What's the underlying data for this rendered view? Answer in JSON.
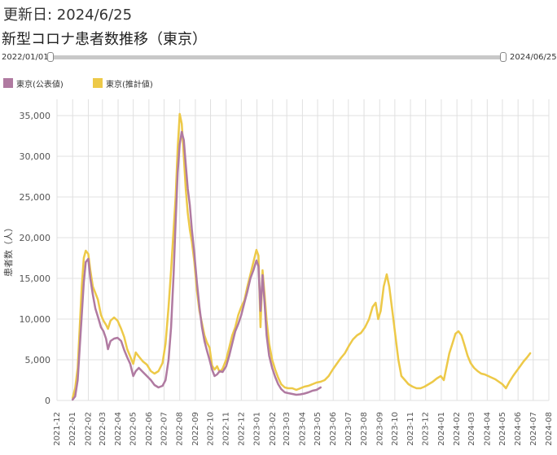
{
  "header": {
    "updated": "更新日: 2024/6/25",
    "title": "新型コロナ患者数推移（東京）"
  },
  "range_slider": {
    "start_label": "2022/01/01",
    "end_label": "2024/06/25"
  },
  "colors": {
    "official": "#b07aa1",
    "estimated": "#edc948",
    "grid": "#e0e0e0"
  },
  "chart_data": {
    "type": "line",
    "title": "",
    "xlabel": "",
    "ylabel": "患者数（人）",
    "ylim": [
      0,
      37000
    ],
    "y_ticks": [
      0,
      5000,
      10000,
      15000,
      20000,
      25000,
      30000,
      35000
    ],
    "y_tick_labels": [
      "0",
      "5,000",
      "10,000",
      "15,000",
      "20,000",
      "25,000",
      "30,000",
      "35,000"
    ],
    "x_range": [
      "2021-12",
      "2024-08"
    ],
    "x_tick_labels": [
      "2021-12",
      "2022-01",
      "2022-02",
      "2022-03",
      "2022-04",
      "2022-05",
      "2022-06",
      "2022-07",
      "2022-08",
      "2022-09",
      "2022-10",
      "2022-11",
      "2022-12",
      "2023-01",
      "2023-02",
      "2023-03",
      "2023-04",
      "2023-05",
      "2023-06",
      "2023-07",
      "2023-08",
      "2023-09",
      "2023-10",
      "2023-11",
      "2023-12",
      "2024-01",
      "2024-02",
      "2024-03",
      "2024-04",
      "2024-05",
      "2024-06",
      "2024-07",
      "2024-08"
    ],
    "legend_position": "top-left",
    "grid": true,
    "series": [
      {
        "name": "東京(公表値)",
        "color": "#b07aa1",
        "points": [
          [
            "2022-01-01",
            100
          ],
          [
            "2022-01-06",
            500
          ],
          [
            "2022-01-11",
            2500
          ],
          [
            "2022-01-15",
            6500
          ],
          [
            "2022-01-19",
            10500
          ],
          [
            "2022-01-23",
            14500
          ],
          [
            "2022-01-27",
            17000
          ],
          [
            "2022-02-01",
            17400
          ],
          [
            "2022-02-05",
            15000
          ],
          [
            "2022-02-10",
            13000
          ],
          [
            "2022-02-15",
            11300
          ],
          [
            "2022-02-20",
            10300
          ],
          [
            "2022-02-26",
            9000
          ],
          [
            "2022-03-03",
            8500
          ],
          [
            "2022-03-08",
            7600
          ],
          [
            "2022-03-12",
            6300
          ],
          [
            "2022-03-17",
            7300
          ],
          [
            "2022-03-24",
            7600
          ],
          [
            "2022-03-31",
            7700
          ],
          [
            "2022-04-07",
            7300
          ],
          [
            "2022-04-13",
            6200
          ],
          [
            "2022-04-19",
            5300
          ],
          [
            "2022-04-25",
            4500
          ],
          [
            "2022-05-01",
            3000
          ],
          [
            "2022-05-06",
            3600
          ],
          [
            "2022-05-12",
            4000
          ],
          [
            "2022-05-20",
            3500
          ],
          [
            "2022-05-28",
            3000
          ],
          [
            "2022-06-05",
            2500
          ],
          [
            "2022-06-12",
            1900
          ],
          [
            "2022-06-20",
            1600
          ],
          [
            "2022-06-28",
            1800
          ],
          [
            "2022-07-04",
            2500
          ],
          [
            "2022-07-10",
            5000
          ],
          [
            "2022-07-15",
            9000
          ],
          [
            "2022-07-20",
            15500
          ],
          [
            "2022-07-24",
            22000
          ],
          [
            "2022-07-28",
            28000
          ],
          [
            "2022-08-01",
            31500
          ],
          [
            "2022-08-05",
            33000
          ],
          [
            "2022-08-09",
            32000
          ],
          [
            "2022-08-13",
            29000
          ],
          [
            "2022-08-17",
            26000
          ],
          [
            "2022-08-21",
            24000
          ],
          [
            "2022-08-25",
            21000
          ],
          [
            "2022-08-30",
            18000
          ],
          [
            "2022-09-04",
            14500
          ],
          [
            "2022-09-09",
            11500
          ],
          [
            "2022-09-14",
            9000
          ],
          [
            "2022-09-19",
            7300
          ],
          [
            "2022-09-24",
            6100
          ],
          [
            "2022-09-29",
            5000
          ],
          [
            "2022-10-04",
            3800
          ],
          [
            "2022-10-09",
            3000
          ],
          [
            "2022-10-14",
            3200
          ],
          [
            "2022-10-19",
            3600
          ],
          [
            "2022-10-25",
            3500
          ],
          [
            "2022-11-01",
            4200
          ],
          [
            "2022-11-07",
            5500
          ],
          [
            "2022-11-13",
            7000
          ],
          [
            "2022-11-19",
            8500
          ],
          [
            "2022-11-25",
            9400
          ],
          [
            "2022-12-01",
            10500
          ],
          [
            "2022-12-07",
            12000
          ],
          [
            "2022-12-13",
            13400
          ],
          [
            "2022-12-19",
            15000
          ],
          [
            "2022-12-25",
            16000
          ],
          [
            "2022-12-31",
            17200
          ],
          [
            "2023-01-04",
            16500
          ],
          [
            "2023-01-08",
            11000
          ],
          [
            "2023-01-12",
            15400
          ],
          [
            "2023-01-16",
            12000
          ],
          [
            "2023-01-20",
            8000
          ],
          [
            "2023-01-25",
            5500
          ],
          [
            "2023-01-31",
            4000
          ],
          [
            "2023-02-06",
            2900
          ],
          [
            "2023-02-12",
            2000
          ],
          [
            "2023-02-18",
            1400
          ],
          [
            "2023-02-25",
            1000
          ],
          [
            "2023-03-04",
            900
          ],
          [
            "2023-03-12",
            800
          ],
          [
            "2023-03-20",
            700
          ],
          [
            "2023-03-28",
            750
          ],
          [
            "2023-04-05",
            850
          ],
          [
            "2023-04-13",
            1000
          ],
          [
            "2023-04-21",
            1200
          ],
          [
            "2023-04-29",
            1300
          ],
          [
            "2023-05-07",
            1600
          ]
        ]
      },
      {
        "name": "東京(推計値)",
        "color": "#edc948",
        "points": [
          [
            "2022-01-01",
            300
          ],
          [
            "2022-01-06",
            1500
          ],
          [
            "2022-01-11",
            4000
          ],
          [
            "2022-01-15",
            9000
          ],
          [
            "2022-01-19",
            14000
          ],
          [
            "2022-01-23",
            17500
          ],
          [
            "2022-01-27",
            18400
          ],
          [
            "2022-02-01",
            18000
          ],
          [
            "2022-02-05",
            16000
          ],
          [
            "2022-02-10",
            14000
          ],
          [
            "2022-02-15",
            13200
          ],
          [
            "2022-02-20",
            12400
          ],
          [
            "2022-02-26",
            10500
          ],
          [
            "2022-03-03",
            9800
          ],
          [
            "2022-03-08",
            9300
          ],
          [
            "2022-03-12",
            8800
          ],
          [
            "2022-03-17",
            9800
          ],
          [
            "2022-03-24",
            10200
          ],
          [
            "2022-03-31",
            9800
          ],
          [
            "2022-04-07",
            8800
          ],
          [
            "2022-04-13",
            7800
          ],
          [
            "2022-04-19",
            6300
          ],
          [
            "2022-04-25",
            5400
          ],
          [
            "2022-05-01",
            4500
          ],
          [
            "2022-05-06",
            5900
          ],
          [
            "2022-05-12",
            5400
          ],
          [
            "2022-05-20",
            4800
          ],
          [
            "2022-05-28",
            4400
          ],
          [
            "2022-06-05",
            3600
          ],
          [
            "2022-06-12",
            3300
          ],
          [
            "2022-06-20",
            3600
          ],
          [
            "2022-06-28",
            4600
          ],
          [
            "2022-07-04",
            7000
          ],
          [
            "2022-07-10",
            11500
          ],
          [
            "2022-07-15",
            16000
          ],
          [
            "2022-07-20",
            21000
          ],
          [
            "2022-07-24",
            25000
          ],
          [
            "2022-07-28",
            31000
          ],
          [
            "2022-08-01",
            35200
          ],
          [
            "2022-08-05",
            34000
          ],
          [
            "2022-08-09",
            30000
          ],
          [
            "2022-08-13",
            26000
          ],
          [
            "2022-08-17",
            23000
          ],
          [
            "2022-08-21",
            21000
          ],
          [
            "2022-08-25",
            19500
          ],
          [
            "2022-08-30",
            17000
          ],
          [
            "2022-09-04",
            13500
          ],
          [
            "2022-09-09",
            11000
          ],
          [
            "2022-09-14",
            9500
          ],
          [
            "2022-09-19",
            8000
          ],
          [
            "2022-09-24",
            7100
          ],
          [
            "2022-09-29",
            6500
          ],
          [
            "2022-10-04",
            4300
          ],
          [
            "2022-10-09",
            3800
          ],
          [
            "2022-10-14",
            4200
          ],
          [
            "2022-10-19",
            3500
          ],
          [
            "2022-10-25",
            3900
          ],
          [
            "2022-11-01",
            5000
          ],
          [
            "2022-11-07",
            6500
          ],
          [
            "2022-11-13",
            8000
          ],
          [
            "2022-11-19",
            9000
          ],
          [
            "2022-11-25",
            10500
          ],
          [
            "2022-12-01",
            11500
          ],
          [
            "2022-12-07",
            12300
          ],
          [
            "2022-12-13",
            14000
          ],
          [
            "2022-12-19",
            15500
          ],
          [
            "2022-12-25",
            17000
          ],
          [
            "2022-12-31",
            18500
          ],
          [
            "2023-01-04",
            17800
          ],
          [
            "2023-01-08",
            9000
          ],
          [
            "2023-01-12",
            16000
          ],
          [
            "2023-01-16",
            13000
          ],
          [
            "2023-01-20",
            9800
          ],
          [
            "2023-01-25",
            7000
          ],
          [
            "2023-01-31",
            5000
          ],
          [
            "2023-02-06",
            3800
          ],
          [
            "2023-02-12",
            2800
          ],
          [
            "2023-02-18",
            2000
          ],
          [
            "2023-02-25",
            1600
          ],
          [
            "2023-03-04",
            1500
          ],
          [
            "2023-03-12",
            1500
          ],
          [
            "2023-03-20",
            1300
          ],
          [
            "2023-03-28",
            1500
          ],
          [
            "2023-04-05",
            1700
          ],
          [
            "2023-04-13",
            1800
          ],
          [
            "2023-04-21",
            2000
          ],
          [
            "2023-04-29",
            2200
          ],
          [
            "2023-05-07",
            2300
          ],
          [
            "2023-05-15",
            2500
          ],
          [
            "2023-05-23",
            3000
          ],
          [
            "2023-05-31",
            3800
          ],
          [
            "2023-06-08",
            4500
          ],
          [
            "2023-06-16",
            5200
          ],
          [
            "2023-06-24",
            5800
          ],
          [
            "2023-07-02",
            6700
          ],
          [
            "2023-07-10",
            7500
          ],
          [
            "2023-07-18",
            8000
          ],
          [
            "2023-07-26",
            8300
          ],
          [
            "2023-08-03",
            9000
          ],
          [
            "2023-08-11",
            10000
          ],
          [
            "2023-08-18",
            11500
          ],
          [
            "2023-08-24",
            12000
          ],
          [
            "2023-08-29",
            10000
          ],
          [
            "2023-09-03",
            11000
          ],
          [
            "2023-09-09",
            14000
          ],
          [
            "2023-09-15",
            15500
          ],
          [
            "2023-09-20",
            14000
          ],
          [
            "2023-09-26",
            11000
          ],
          [
            "2023-10-02",
            8000
          ],
          [
            "2023-10-08",
            5000
          ],
          [
            "2023-10-14",
            3000
          ],
          [
            "2023-10-21",
            2500
          ],
          [
            "2023-10-28",
            2000
          ],
          [
            "2023-11-05",
            1700
          ],
          [
            "2023-11-13",
            1500
          ],
          [
            "2023-11-21",
            1500
          ],
          [
            "2023-11-29",
            1700
          ],
          [
            "2023-12-07",
            2000
          ],
          [
            "2023-12-15",
            2300
          ],
          [
            "2023-12-23",
            2700
          ],
          [
            "2023-12-31",
            3000
          ],
          [
            "2024-01-06",
            2500
          ],
          [
            "2024-01-11",
            4000
          ],
          [
            "2024-01-17",
            5800
          ],
          [
            "2024-01-23",
            7000
          ],
          [
            "2024-01-29",
            8200
          ],
          [
            "2024-02-04",
            8500
          ],
          [
            "2024-02-10",
            8000
          ],
          [
            "2024-02-16",
            6800
          ],
          [
            "2024-02-22",
            5500
          ],
          [
            "2024-02-28",
            4600
          ],
          [
            "2024-03-06",
            4000
          ],
          [
            "2024-03-13",
            3600
          ],
          [
            "2024-03-20",
            3300
          ],
          [
            "2024-03-27",
            3200
          ],
          [
            "2024-04-03",
            3000
          ],
          [
            "2024-04-10",
            2800
          ],
          [
            "2024-04-17",
            2600
          ],
          [
            "2024-04-24",
            2300
          ],
          [
            "2024-05-01",
            2000
          ],
          [
            "2024-05-08",
            1500
          ],
          [
            "2024-05-15",
            2300
          ],
          [
            "2024-05-22",
            3000
          ],
          [
            "2024-05-29",
            3600
          ],
          [
            "2024-06-05",
            4200
          ],
          [
            "2024-06-12",
            4800
          ],
          [
            "2024-06-19",
            5300
          ],
          [
            "2024-06-25",
            5800
          ]
        ]
      }
    ]
  }
}
